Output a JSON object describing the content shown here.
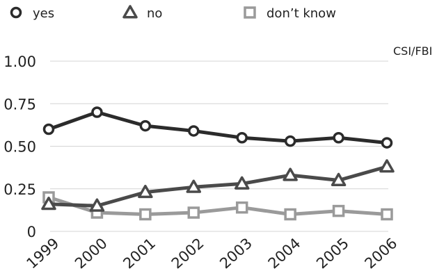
{
  "chart_data": {
    "type": "line",
    "title": "",
    "xlabel": "",
    "ylabel": "",
    "annotation": "CSI/FBI",
    "categories": [
      "1999",
      "2000",
      "2001",
      "2002",
      "2003",
      "2004",
      "2005",
      "2006"
    ],
    "yticks": [
      {
        "value": 0,
        "label": "0"
      },
      {
        "value": 0.25,
        "label": "0.25"
      },
      {
        "value": 0.5,
        "label": "0.50"
      },
      {
        "value": 0.75,
        "label": "0.75"
      },
      {
        "value": 1.0,
        "label": "1.00"
      }
    ],
    "ylim": [
      0,
      1.0
    ],
    "grid": true,
    "legend_position": "top",
    "series": [
      {
        "name": "yes",
        "marker": "circle",
        "color": "#2b2b2b",
        "values": [
          0.6,
          0.7,
          0.62,
          0.59,
          0.55,
          0.53,
          0.55,
          0.52
        ]
      },
      {
        "name": "no",
        "marker": "triangle",
        "color": "#4a4a4a",
        "values": [
          0.16,
          0.15,
          0.23,
          0.26,
          0.28,
          0.33,
          0.3,
          0.38
        ]
      },
      {
        "name": "don’t know",
        "marker": "square",
        "color": "#9a9a9a",
        "values": [
          0.2,
          0.11,
          0.1,
          0.11,
          0.14,
          0.1,
          0.12,
          0.1
        ]
      }
    ]
  }
}
